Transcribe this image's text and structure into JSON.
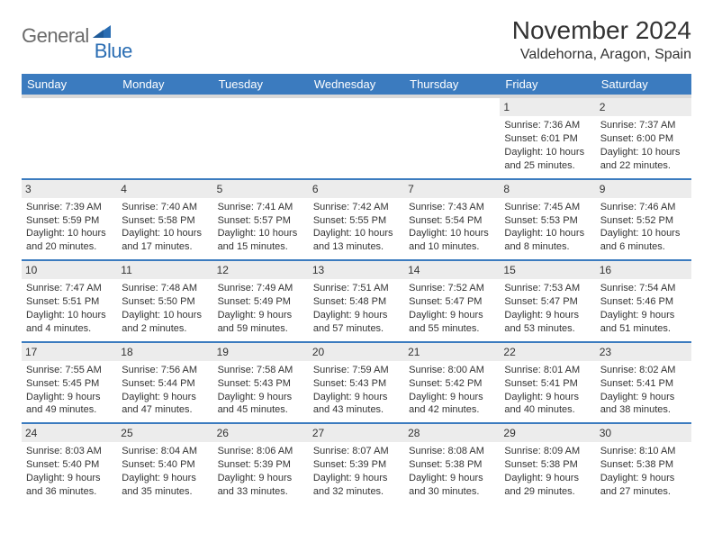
{
  "brand": {
    "part1": "General",
    "part2": "Blue"
  },
  "title": "November 2024",
  "location": "Valdehorna, Aragon, Spain",
  "colors": {
    "header_bg": "#3b7bbf",
    "header_text": "#ffffff",
    "row_divider": "#3b7bbf",
    "daynum_bg": "#ececec",
    "logo_gray": "#6b6b6b",
    "logo_blue": "#2a6db3"
  },
  "weekdays": [
    "Sunday",
    "Monday",
    "Tuesday",
    "Wednesday",
    "Thursday",
    "Friday",
    "Saturday"
  ],
  "weeks": [
    [
      {
        "day": "",
        "sunrise": "",
        "sunset": "",
        "daylight": ""
      },
      {
        "day": "",
        "sunrise": "",
        "sunset": "",
        "daylight": ""
      },
      {
        "day": "",
        "sunrise": "",
        "sunset": "",
        "daylight": ""
      },
      {
        "day": "",
        "sunrise": "",
        "sunset": "",
        "daylight": ""
      },
      {
        "day": "",
        "sunrise": "",
        "sunset": "",
        "daylight": ""
      },
      {
        "day": "1",
        "sunrise": "Sunrise: 7:36 AM",
        "sunset": "Sunset: 6:01 PM",
        "daylight": "Daylight: 10 hours and 25 minutes."
      },
      {
        "day": "2",
        "sunrise": "Sunrise: 7:37 AM",
        "sunset": "Sunset: 6:00 PM",
        "daylight": "Daylight: 10 hours and 22 minutes."
      }
    ],
    [
      {
        "day": "3",
        "sunrise": "Sunrise: 7:39 AM",
        "sunset": "Sunset: 5:59 PM",
        "daylight": "Daylight: 10 hours and 20 minutes."
      },
      {
        "day": "4",
        "sunrise": "Sunrise: 7:40 AM",
        "sunset": "Sunset: 5:58 PM",
        "daylight": "Daylight: 10 hours and 17 minutes."
      },
      {
        "day": "5",
        "sunrise": "Sunrise: 7:41 AM",
        "sunset": "Sunset: 5:57 PM",
        "daylight": "Daylight: 10 hours and 15 minutes."
      },
      {
        "day": "6",
        "sunrise": "Sunrise: 7:42 AM",
        "sunset": "Sunset: 5:55 PM",
        "daylight": "Daylight: 10 hours and 13 minutes."
      },
      {
        "day": "7",
        "sunrise": "Sunrise: 7:43 AM",
        "sunset": "Sunset: 5:54 PM",
        "daylight": "Daylight: 10 hours and 10 minutes."
      },
      {
        "day": "8",
        "sunrise": "Sunrise: 7:45 AM",
        "sunset": "Sunset: 5:53 PM",
        "daylight": "Daylight: 10 hours and 8 minutes."
      },
      {
        "day": "9",
        "sunrise": "Sunrise: 7:46 AM",
        "sunset": "Sunset: 5:52 PM",
        "daylight": "Daylight: 10 hours and 6 minutes."
      }
    ],
    [
      {
        "day": "10",
        "sunrise": "Sunrise: 7:47 AM",
        "sunset": "Sunset: 5:51 PM",
        "daylight": "Daylight: 10 hours and 4 minutes."
      },
      {
        "day": "11",
        "sunrise": "Sunrise: 7:48 AM",
        "sunset": "Sunset: 5:50 PM",
        "daylight": "Daylight: 10 hours and 2 minutes."
      },
      {
        "day": "12",
        "sunrise": "Sunrise: 7:49 AM",
        "sunset": "Sunset: 5:49 PM",
        "daylight": "Daylight: 9 hours and 59 minutes."
      },
      {
        "day": "13",
        "sunrise": "Sunrise: 7:51 AM",
        "sunset": "Sunset: 5:48 PM",
        "daylight": "Daylight: 9 hours and 57 minutes."
      },
      {
        "day": "14",
        "sunrise": "Sunrise: 7:52 AM",
        "sunset": "Sunset: 5:47 PM",
        "daylight": "Daylight: 9 hours and 55 minutes."
      },
      {
        "day": "15",
        "sunrise": "Sunrise: 7:53 AM",
        "sunset": "Sunset: 5:47 PM",
        "daylight": "Daylight: 9 hours and 53 minutes."
      },
      {
        "day": "16",
        "sunrise": "Sunrise: 7:54 AM",
        "sunset": "Sunset: 5:46 PM",
        "daylight": "Daylight: 9 hours and 51 minutes."
      }
    ],
    [
      {
        "day": "17",
        "sunrise": "Sunrise: 7:55 AM",
        "sunset": "Sunset: 5:45 PM",
        "daylight": "Daylight: 9 hours and 49 minutes."
      },
      {
        "day": "18",
        "sunrise": "Sunrise: 7:56 AM",
        "sunset": "Sunset: 5:44 PM",
        "daylight": "Daylight: 9 hours and 47 minutes."
      },
      {
        "day": "19",
        "sunrise": "Sunrise: 7:58 AM",
        "sunset": "Sunset: 5:43 PM",
        "daylight": "Daylight: 9 hours and 45 minutes."
      },
      {
        "day": "20",
        "sunrise": "Sunrise: 7:59 AM",
        "sunset": "Sunset: 5:43 PM",
        "daylight": "Daylight: 9 hours and 43 minutes."
      },
      {
        "day": "21",
        "sunrise": "Sunrise: 8:00 AM",
        "sunset": "Sunset: 5:42 PM",
        "daylight": "Daylight: 9 hours and 42 minutes."
      },
      {
        "day": "22",
        "sunrise": "Sunrise: 8:01 AM",
        "sunset": "Sunset: 5:41 PM",
        "daylight": "Daylight: 9 hours and 40 minutes."
      },
      {
        "day": "23",
        "sunrise": "Sunrise: 8:02 AM",
        "sunset": "Sunset: 5:41 PM",
        "daylight": "Daylight: 9 hours and 38 minutes."
      }
    ],
    [
      {
        "day": "24",
        "sunrise": "Sunrise: 8:03 AM",
        "sunset": "Sunset: 5:40 PM",
        "daylight": "Daylight: 9 hours and 36 minutes."
      },
      {
        "day": "25",
        "sunrise": "Sunrise: 8:04 AM",
        "sunset": "Sunset: 5:40 PM",
        "daylight": "Daylight: 9 hours and 35 minutes."
      },
      {
        "day": "26",
        "sunrise": "Sunrise: 8:06 AM",
        "sunset": "Sunset: 5:39 PM",
        "daylight": "Daylight: 9 hours and 33 minutes."
      },
      {
        "day": "27",
        "sunrise": "Sunrise: 8:07 AM",
        "sunset": "Sunset: 5:39 PM",
        "daylight": "Daylight: 9 hours and 32 minutes."
      },
      {
        "day": "28",
        "sunrise": "Sunrise: 8:08 AM",
        "sunset": "Sunset: 5:38 PM",
        "daylight": "Daylight: 9 hours and 30 minutes."
      },
      {
        "day": "29",
        "sunrise": "Sunrise: 8:09 AM",
        "sunset": "Sunset: 5:38 PM",
        "daylight": "Daylight: 9 hours and 29 minutes."
      },
      {
        "day": "30",
        "sunrise": "Sunrise: 8:10 AM",
        "sunset": "Sunset: 5:38 PM",
        "daylight": "Daylight: 9 hours and 27 minutes."
      }
    ]
  ]
}
